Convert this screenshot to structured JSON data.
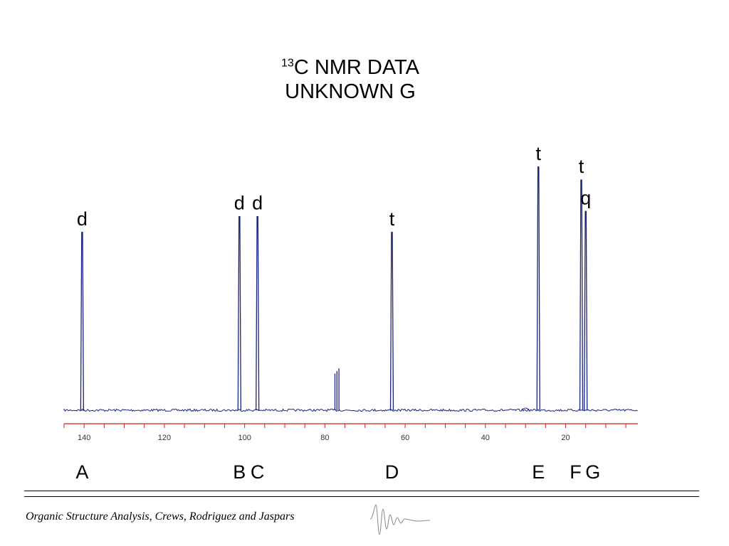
{
  "title": {
    "isotope_superscript": "13",
    "line1_rest": "C NMR DATA",
    "line2": "UNKNOWN G"
  },
  "chart_data": {
    "type": "line",
    "title": "13C NMR DATA UNKNOWN G",
    "xlabel": "",
    "ylabel": "",
    "xlim": [
      145,
      2
    ],
    "x_axis_reversed": true,
    "ticks": [
      140,
      120,
      100,
      80,
      60,
      40,
      20
    ],
    "peaks": [
      {
        "x": 140.5,
        "intensity": 0.68,
        "multiplicity": "d",
        "label": "A"
      },
      {
        "x": 101.3,
        "intensity": 0.74,
        "multiplicity": "d",
        "label": "B"
      },
      {
        "x": 96.8,
        "intensity": 0.74,
        "multiplicity": "d",
        "label": "C"
      },
      {
        "x": 63.3,
        "intensity": 0.68,
        "multiplicity": "t",
        "label": "D"
      },
      {
        "x": 26.8,
        "intensity": 0.93,
        "multiplicity": "t",
        "label": "E"
      },
      {
        "x": 16.1,
        "intensity": 0.88,
        "multiplicity": "t",
        "label": "F"
      },
      {
        "x": 15.0,
        "intensity": 0.76,
        "multiplicity": "q",
        "label": "G"
      }
    ],
    "solvent_peaks": [
      {
        "x": 77.5,
        "intensity": 0.14
      },
      {
        "x": 77.0,
        "intensity": 0.15
      },
      {
        "x": 76.5,
        "intensity": 0.16
      }
    ],
    "colors": {
      "trace": "#1a237e",
      "axis": "#cc2222",
      "tick_label": "#333333"
    }
  },
  "footer": {
    "citation": "Organic Structure Analysis, Crews, Rodriguez and Jaspars"
  }
}
